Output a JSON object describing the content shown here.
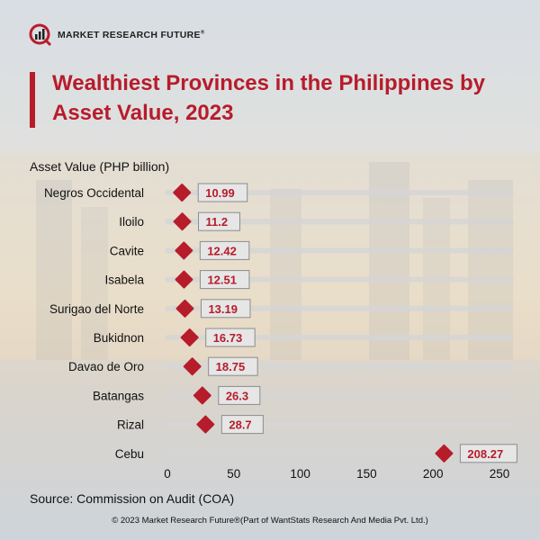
{
  "brand": {
    "name": "MARKET RESEARCH FUTURE",
    "reg": "®",
    "accent": "#b71c2b"
  },
  "title": "Wealthiest Provinces in the Philippines by Asset Value, 2023",
  "source": "Source: Commission on Audit (COA)",
  "copyright": "© 2023 Market Research Future®(Part of WantStats Research And Media Pvt. Ltd.)",
  "chart_data": {
    "type": "scatter",
    "ylabel": "Asset Value (PHP billion)",
    "categories": [
      "Negros Occidental",
      "Iloilo",
      "Cavite",
      "Isabela",
      "Surigao del Norte",
      "Bukidnon",
      "Davao de Oro",
      "Batangas",
      "Rizal",
      "Cebu"
    ],
    "values": [
      10.99,
      11.2,
      12.42,
      12.51,
      13.19,
      16.73,
      18.75,
      26.3,
      28.7,
      208.27
    ],
    "value_labels": [
      "10.99",
      "11.2",
      "12.42",
      "12.51",
      "13.19",
      "16.73",
      "18.75",
      "26.3",
      "28.7",
      "208.27"
    ],
    "xticks": [
      0,
      50,
      100,
      150,
      200,
      250
    ],
    "xlim": [
      0,
      260
    ],
    "marker": "diamond",
    "marker_color": "#b71c2b",
    "label_color": "#b71c2b"
  }
}
